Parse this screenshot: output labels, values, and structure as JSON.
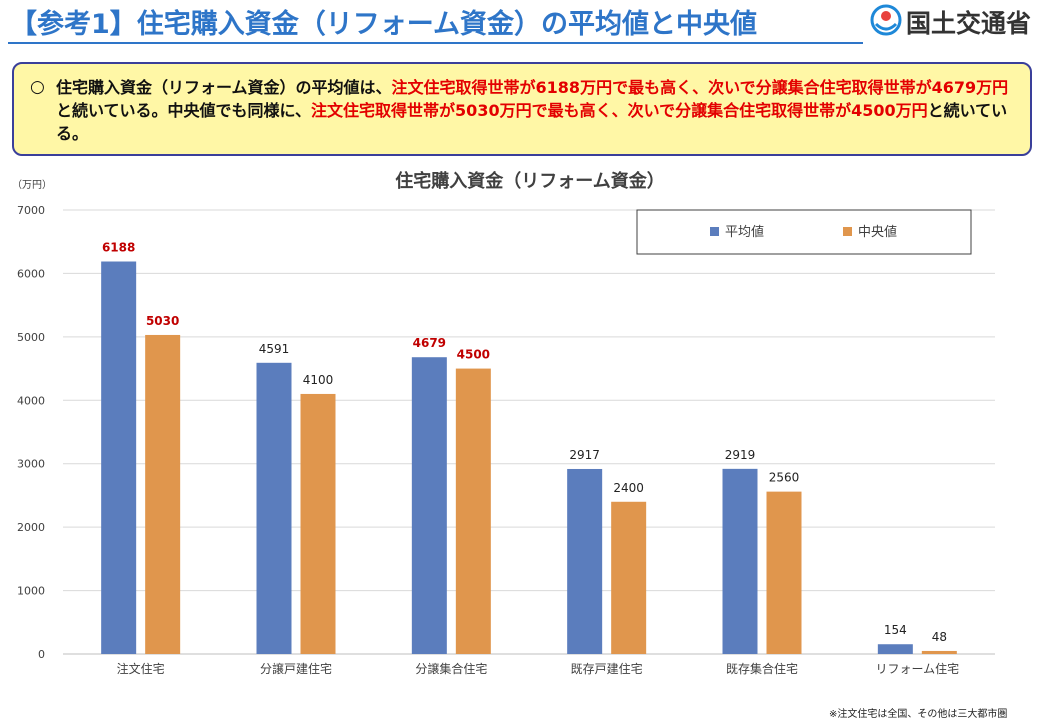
{
  "header": {
    "title": "【参考1】住宅購入資金（リフォーム資金）の平均値と中央値",
    "logo_text": "国土交通省"
  },
  "summary": {
    "bullet": "○",
    "segments": [
      {
        "text": "住宅購入資金（リフォーム資金）の平均値は、",
        "red": false
      },
      {
        "text": "注文住宅取得世帯が6188万円で最も高く、次いで分譲集合住宅取得世帯が4679万円",
        "red": true
      },
      {
        "text": "と続いている。中央値でも同様に、",
        "red": false
      },
      {
        "text": "注文住宅取得世帯が5030万円で最も高く、次いで分譲集合住宅取得世帯が4500万円",
        "red": true
      },
      {
        "text": "と続いている。",
        "red": false
      }
    ]
  },
  "chart_data": {
    "type": "bar",
    "title": "住宅購入資金（リフォーム資金）",
    "unit_label": "（万円）",
    "categories": [
      "注文住宅",
      "分譲戸建住宅",
      "分譲集合住宅",
      "既存戸建住宅",
      "既存集合住宅",
      "リフォーム住宅"
    ],
    "series": [
      {
        "name": "平均値",
        "values": [
          6188,
          4591,
          4679,
          2917,
          2919,
          154
        ],
        "color": "#5b7dbd",
        "label_colors": [
          "#c00000",
          "#222222",
          "#c00000",
          "#222222",
          "#222222",
          "#222222"
        ]
      },
      {
        "name": "中央値",
        "values": [
          5030,
          4100,
          4500,
          2400,
          2560,
          48
        ],
        "color": "#e0964d",
        "label_colors": [
          "#c00000",
          "#222222",
          "#c00000",
          "#222222",
          "#222222",
          "#222222"
        ]
      }
    ],
    "ylim": [
      0,
      7000
    ],
    "yticks": [
      0,
      1000,
      2000,
      3000,
      4000,
      5000,
      6000,
      7000
    ],
    "grid": true,
    "legend_position": "top-right"
  },
  "footnote": "※注文住宅は全国、その他は三大都市圏"
}
